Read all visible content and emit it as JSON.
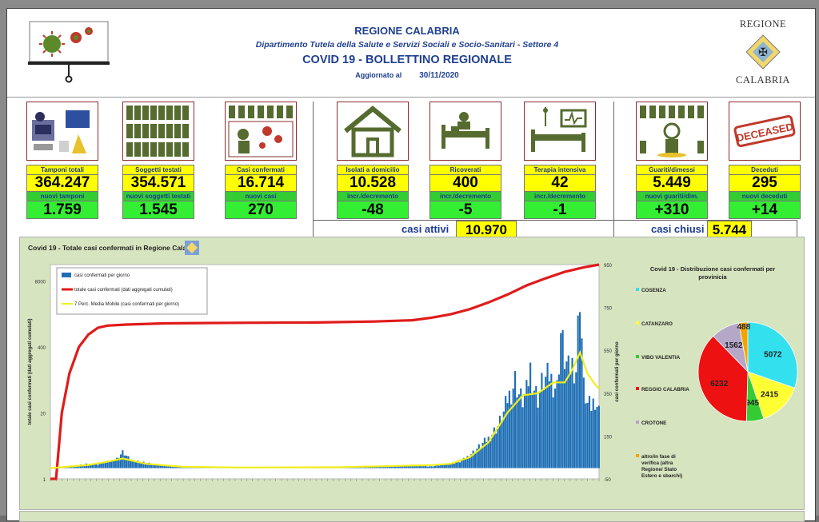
{
  "header": {
    "region": "REGIONE CALABRIA",
    "department": "Dipartimento Tutela della Salute e Servizi Sociali e Socio-Sanitari - Settore 4",
    "title": "COVID 19 - BOLLETTINO REGIONALE",
    "updated_label": "Aggiornato al",
    "updated_date": "30/11/2020",
    "crest_top": "REGIONE",
    "crest_bottom": "CALABRIA"
  },
  "tiles": [
    {
      "id": "tamponi",
      "label": "Tamponi totali",
      "value": "364.247",
      "sub_label": "nuovi tamponi",
      "sub_value": "1.759",
      "icon": "lab-test-icon"
    },
    {
      "id": "soggetti",
      "label": "Soggetti testati",
      "value": "354.571",
      "sub_label": "nuovi soggetti testati",
      "sub_value": "1.545",
      "icon": "people-grid-icon"
    },
    {
      "id": "casi",
      "label": "Casi confermati",
      "value": "16.714",
      "sub_label": "nuovi casi",
      "sub_value": "270",
      "icon": "infected-person-icon"
    },
    {
      "id": "isolati",
      "label": "Isolati a domicilio",
      "value": "10.528",
      "sub_label": "incr./decremento",
      "sub_value": "-48",
      "icon": "house-icon"
    },
    {
      "id": "ricoverati",
      "label": "Ricoverati",
      "value": "400",
      "sub_label": "incr./decremento",
      "sub_value": "-5",
      "icon": "hospital-bed-icon"
    },
    {
      "id": "terapia",
      "label": "Terapia intensiva",
      "value": "42",
      "sub_label": "incr./decremento",
      "sub_value": "-1",
      "icon": "icu-bed-icon"
    },
    {
      "id": "guariti",
      "label": "Guariti/dimessi",
      "value": "5.449",
      "sub_label": "nuovi guariti/dim.",
      "sub_value": "+310",
      "icon": "recovered-person-icon"
    },
    {
      "id": "deceduti",
      "label": "Deceduti",
      "value": "295",
      "sub_label": "nuovi deceduti",
      "sub_value": "+14",
      "icon": "deceased-stamp-icon"
    }
  ],
  "icons": {
    "deceased_stamp_text": "DECEASED"
  },
  "summary": {
    "active_label": "casi attivi",
    "active_value": "10.970",
    "closed_label": "casi chiusi",
    "closed_value": "5.744"
  },
  "colors": {
    "yellow": "#ffff00",
    "green": "#33ee33",
    "blue_text": "#1b3b8f",
    "panel": "#d6e4bf",
    "bars": "#1f6fb5",
    "cumulative": "#e01b1b",
    "moving_avg": "#f2ef1a"
  },
  "chart_data": [
    {
      "type": "bar",
      "title": "Covid 19 - Totale casi confermati in Regione Calabria",
      "legend": [
        "casi confermati per giorno",
        "totale casi confermati (dati aggregati cumulati)",
        "7 Perc. Media Mobile (casi confermati per giorno)"
      ],
      "legend_position": "top-left",
      "ylabel_left": "totale casi confermati (dati aggregati cumulati)",
      "ylabel_right": "casi confermati per giorno",
      "left_ticks": [
        "8000",
        "400",
        "20",
        "1"
      ],
      "right_ticks": [
        "950",
        "750",
        "550",
        "350",
        "150",
        "-50"
      ],
      "y_left_scale": "log",
      "ylim_left": [
        1,
        16714
      ],
      "ylim_right": [
        -50,
        950
      ],
      "date_range": [
        "2020-02-27",
        "2020-11-30"
      ],
      "daily_cases_points": [
        [
          0,
          0
        ],
        [
          10,
          8
        ],
        [
          20,
          20
        ],
        [
          25,
          18
        ],
        [
          30,
          30
        ],
        [
          35,
          45
        ],
        [
          38,
          75
        ],
        [
          42,
          40
        ],
        [
          50,
          25
        ],
        [
          60,
          10
        ],
        [
          80,
          4
        ],
        [
          100,
          2
        ],
        [
          120,
          2
        ],
        [
          140,
          3
        ],
        [
          150,
          2
        ],
        [
          160,
          8
        ],
        [
          170,
          6
        ],
        [
          180,
          10
        ],
        [
          190,
          12
        ],
        [
          200,
          8
        ],
        [
          210,
          20
        ],
        [
          215,
          30
        ],
        [
          220,
          60
        ],
        [
          225,
          100
        ],
        [
          230,
          140
        ],
        [
          235,
          200
        ],
        [
          238,
          260
        ],
        [
          240,
          330
        ],
        [
          242,
          360
        ],
        [
          244,
          420
        ],
        [
          246,
          350
        ],
        [
          248,
          320
        ],
        [
          250,
          360
        ],
        [
          252,
          470
        ],
        [
          254,
          380
        ],
        [
          256,
          330
        ],
        [
          258,
          400
        ],
        [
          260,
          420
        ],
        [
          262,
          440
        ],
        [
          264,
          400
        ],
        [
          266,
          380
        ],
        [
          268,
          640
        ],
        [
          270,
          520
        ],
        [
          272,
          460
        ],
        [
          274,
          490
        ],
        [
          276,
          470
        ],
        [
          278,
          850
        ],
        [
          280,
          380
        ],
        [
          282,
          300
        ],
        [
          284,
          290
        ],
        [
          286,
          330
        ],
        [
          288,
          270
        ]
      ],
      "cumulative_points": [
        [
          0,
          1
        ],
        [
          3,
          1
        ],
        [
          6,
          20
        ],
        [
          10,
          120
        ],
        [
          15,
          400
        ],
        [
          20,
          700
        ],
        [
          25,
          950
        ],
        [
          30,
          1050
        ],
        [
          40,
          1100
        ],
        [
          60,
          1160
        ],
        [
          100,
          1190
        ],
        [
          140,
          1210
        ],
        [
          170,
          1260
        ],
        [
          190,
          1340
        ],
        [
          200,
          1500
        ],
        [
          210,
          1750
        ],
        [
          220,
          2200
        ],
        [
          230,
          3000
        ],
        [
          240,
          4300
        ],
        [
          250,
          6500
        ],
        [
          260,
          9000
        ],
        [
          270,
          12000
        ],
        [
          280,
          14800
        ],
        [
          288,
          16714
        ]
      ],
      "moving_avg_points": [
        [
          0,
          0
        ],
        [
          20,
          15
        ],
        [
          30,
          30
        ],
        [
          38,
          45
        ],
        [
          50,
          20
        ],
        [
          70,
          6
        ],
        [
          100,
          3
        ],
        [
          150,
          4
        ],
        [
          190,
          12
        ],
        [
          200,
          14
        ],
        [
          210,
          20
        ],
        [
          220,
          50
        ],
        [
          230,
          120
        ],
        [
          240,
          260
        ],
        [
          248,
          340
        ],
        [
          256,
          350
        ],
        [
          264,
          400
        ],
        [
          270,
          400
        ],
        [
          274,
          460
        ],
        [
          278,
          540
        ],
        [
          282,
          440
        ],
        [
          286,
          390
        ],
        [
          288,
          370
        ]
      ]
    },
    {
      "type": "pie",
      "title": "Covid 19 - Distribuzione casi confermati per provinicia",
      "legend_position": "left",
      "categories": [
        "COSENZA",
        "CATANZARO",
        "VIBO VALENTIA",
        "REGGIO CALABRIA",
        "CROTONE",
        "altro/in fase di verifica (altra Regione/ Stato Estero e sbarchi)"
      ],
      "values": [
        5072,
        2415,
        945,
        6232,
        1562,
        488
      ],
      "colors": [
        "#33e0ee",
        "#ffff33",
        "#33cc33",
        "#ee1111",
        "#b4a7c8",
        "#f2a500"
      ]
    }
  ]
}
